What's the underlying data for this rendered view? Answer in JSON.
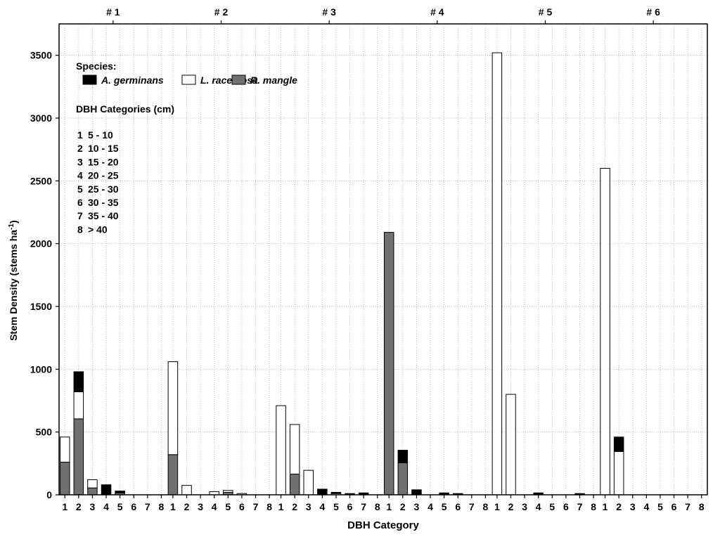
{
  "chart_data": {
    "type": "bar",
    "stacked": true,
    "xlabel": "DBH Category",
    "ylabel": "Stem Density (stems ha",
    "ylabel_sup": "-1",
    "ylabel_end": ")",
    "ylim": [
      0,
      3750
    ],
    "yticks": [
      0,
      500,
      1000,
      1500,
      2000,
      2500,
      3000,
      3500
    ],
    "grid": true,
    "panels": [
      "# 1",
      "# 2",
      "# 3",
      "# 4",
      "# 5",
      "# 6"
    ],
    "categories": [
      "1",
      "2",
      "3",
      "4",
      "5",
      "6",
      "7",
      "8"
    ],
    "series": [
      {
        "name": "R. mangle",
        "color": "#707070",
        "values": [
          [
            260,
            605,
            55,
            0,
            15,
            0,
            0,
            0
          ],
          [
            320,
            0,
            0,
            0,
            20,
            0,
            0,
            0
          ],
          [
            0,
            165,
            0,
            0,
            0,
            0,
            0,
            0
          ],
          [
            2090,
            255,
            0,
            0,
            0,
            0,
            0,
            0
          ],
          [
            0,
            0,
            0,
            0,
            0,
            0,
            0,
            0
          ],
          [
            0,
            0,
            0,
            0,
            0,
            0,
            0,
            0
          ]
        ]
      },
      {
        "name": "L. racemosa",
        "color": "#ffffff",
        "values": [
          [
            200,
            215,
            65,
            0,
            0,
            0,
            0,
            0
          ],
          [
            740,
            75,
            0,
            25,
            15,
            10,
            0,
            0
          ],
          [
            710,
            395,
            195,
            0,
            10,
            0,
            0,
            0
          ],
          [
            0,
            0,
            0,
            0,
            0,
            0,
            0,
            0
          ],
          [
            3520,
            800,
            0,
            0,
            0,
            0,
            0,
            0
          ],
          [
            2600,
            345,
            0,
            0,
            0,
            0,
            0,
            0
          ]
        ]
      },
      {
        "name": "A. germinans",
        "color": "#000000",
        "values": [
          [
            0,
            160,
            0,
            80,
            15,
            0,
            0,
            0
          ],
          [
            0,
            0,
            0,
            0,
            0,
            0,
            0,
            0
          ],
          [
            0,
            0,
            0,
            45,
            10,
            10,
            15,
            0
          ],
          [
            0,
            100,
            40,
            0,
            15,
            10,
            0,
            0
          ],
          [
            0,
            0,
            0,
            15,
            0,
            0,
            10,
            0
          ],
          [
            0,
            115,
            0,
            0,
            0,
            0,
            0,
            0
          ]
        ]
      }
    ],
    "legend": {
      "placement": "top-left",
      "species_title": "Species:",
      "order": [
        "A. germinans",
        "L. racemosa",
        "R. mangle"
      ],
      "dbh_title": "DBH Categories (cm)",
      "dbh_items": [
        {
          "num": "1",
          "range": "5 - 10"
        },
        {
          "num": "2",
          "range": "10 - 15"
        },
        {
          "num": "3",
          "range": "15 - 20"
        },
        {
          "num": "4",
          "range": "20 - 25"
        },
        {
          "num": "5",
          "range": "25 - 30"
        },
        {
          "num": "6",
          "range": "30 - 35"
        },
        {
          "num": "7",
          "range": "35 - 40"
        },
        {
          "num": "8",
          "range": "> 40"
        }
      ]
    }
  }
}
